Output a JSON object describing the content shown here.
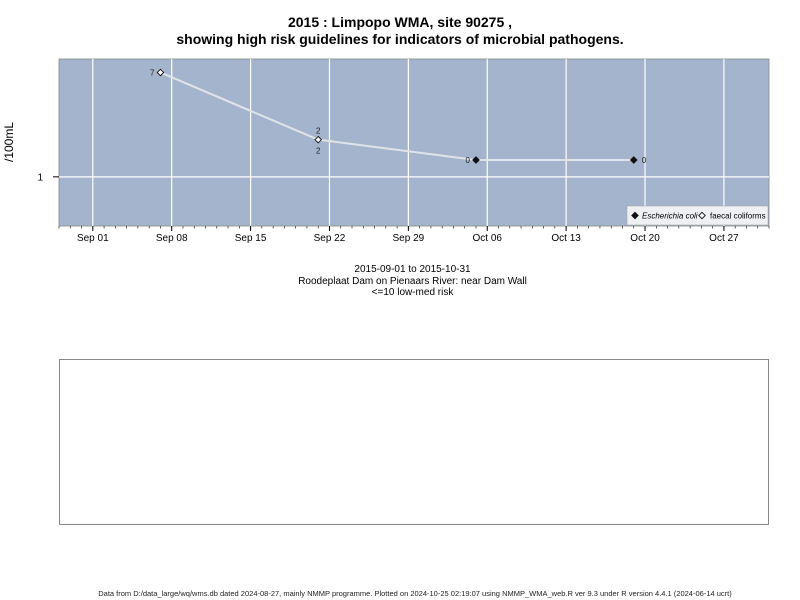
{
  "header": {
    "title_line1": "2015 : Limpopo WMA, site 90275 ,",
    "title_line2": "showing high risk guidelines for indicators of microbial pathogens."
  },
  "chart_data": {
    "type": "line",
    "ylabel": "/100mL",
    "y_ticks": [
      1
    ],
    "y_scale": "log",
    "x_ticks": [
      "Sep 01",
      "Sep 08",
      "Sep 15",
      "Sep 22",
      "Sep 29",
      "Oct 06",
      "Oct 13",
      "Oct 20",
      "Oct 27"
    ],
    "xlim": [
      "2015-08-29",
      "2015-10-31"
    ],
    "grid": true,
    "legend_position": "bottom-right",
    "series": [
      {
        "name": "Escherichia coli",
        "marker": "filled-diamond",
        "points": [
          {
            "x": "2015-10-05",
            "label": "0"
          },
          {
            "x": "2015-10-19",
            "label": "0"
          }
        ]
      },
      {
        "name": "faecal coliforms",
        "marker": "open-diamond",
        "points": [
          {
            "x": "2015-09-07",
            "y": 7,
            "label": "7"
          },
          {
            "x": "2015-09-21",
            "y": 2,
            "label": "2"
          }
        ]
      }
    ],
    "extra_labels": [
      {
        "x": "2015-09-21",
        "label": "2"
      }
    ],
    "colors": {
      "panel": "#a3b4cc",
      "grid": "#ffffff",
      "line": "#dfe3ea",
      "marker": "#111111",
      "legend_bg": "#eef0f4"
    }
  },
  "subtitle": {
    "date_range": "2015-09-01 to 2015-10-31",
    "location": "Roodeplaat Dam on Pienaars River: near Dam Wall",
    "risk": "<=10 low-med risk"
  },
  "footer": {
    "text": "Data from D:/data_large/wq/wms.db dated 2024-08-27, mainly NMMP programme. Plotted on 2024-10-25 02:19:07 using NMMP_WMA_web.R ver 9.3 under R version 4.4.1 (2024-06-14 ucrt)"
  }
}
